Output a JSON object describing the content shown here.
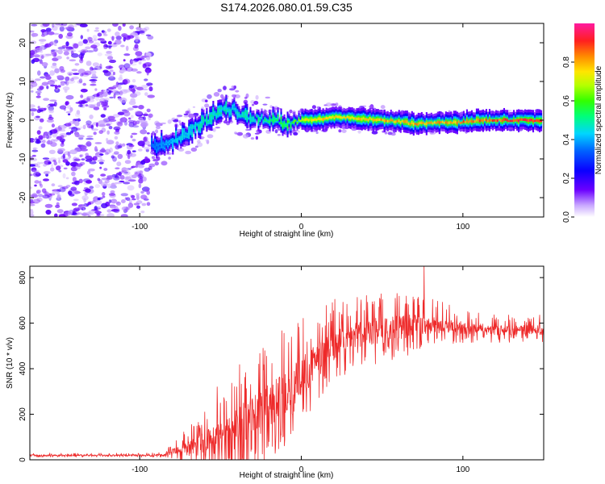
{
  "colors": {
    "snr_line": "#ee2a2a",
    "noise_purple": "#7a2cff",
    "frame": "#000000"
  },
  "chart_data": [
    {
      "type": "heatmap",
      "title": "S174.2026.080.01.59.C35",
      "xlabel": "Height of straight line (km)",
      "ylabel": "Frequency (Hz)",
      "xlim": [
        -168,
        150
      ],
      "ylim": [
        -25,
        25
      ],
      "xticks": [
        -100,
        0,
        100
      ],
      "xtick_labels": [
        "-100",
        "0",
        "100"
      ],
      "yticks": [
        -20,
        -10,
        0,
        10,
        20
      ],
      "ytick_labels": [
        "-20",
        "-10",
        "0",
        "10",
        "20"
      ],
      "colorbar": {
        "label": "Normalized spectral amplitude",
        "range": [
          0,
          1
        ],
        "ticks": [
          0.0,
          0.2,
          0.4,
          0.6,
          0.8
        ],
        "tick_labels": [
          "0.0",
          "0.2",
          "0.4",
          "0.6",
          "0.8"
        ],
        "colormap": "rainbow (purple-blue-cyan-green-yellow-red-magenta)"
      },
      "signal_track": {
        "x": [
          -93,
          -85,
          -78,
          -70,
          -62,
          -55,
          -48,
          -42,
          -38,
          -30,
          -22,
          -15,
          -10,
          -5,
          0,
          10,
          20,
          30,
          40,
          50,
          60,
          70,
          80,
          90,
          100,
          110,
          120,
          130,
          140,
          148
        ],
        "frequency": [
          -6.5,
          -6.0,
          -5.0,
          -3.0,
          -1.0,
          1.0,
          2.5,
          3.0,
          1.5,
          0.5,
          0.3,
          0.0,
          -1.5,
          -0.5,
          0.0,
          0.2,
          0.8,
          0.6,
          0.3,
          0.0,
          -0.3,
          -1.0,
          -0.8,
          -0.5,
          -0.5,
          0.0,
          0.0,
          0.0,
          0.0,
          0.0
        ],
        "amplitude": [
          0.35,
          0.4,
          0.45,
          0.45,
          0.5,
          0.5,
          0.5,
          0.45,
          0.5,
          0.5,
          0.55,
          0.55,
          0.6,
          0.65,
          0.75,
          0.8,
          0.8,
          0.8,
          0.8,
          0.85,
          0.85,
          0.85,
          0.85,
          0.85,
          0.9,
          0.9,
          0.92,
          0.95,
          0.97,
          0.97
        ]
      },
      "noise_region": {
        "x_from": -168,
        "x_to": -93,
        "amplitude_range": [
          0.0,
          0.15
        ]
      }
    },
    {
      "type": "line",
      "title": "",
      "xlabel": "Height of straight line (km)",
      "ylabel": "SNR (10 * v/v)",
      "xlim": [
        -168,
        150
      ],
      "ylim": [
        0,
        850
      ],
      "xticks": [
        -100,
        0,
        100
      ],
      "xtick_labels": [
        "-100",
        "0",
        "100"
      ],
      "yticks": [
        0,
        200,
        400,
        600,
        800
      ],
      "ytick_labels": [
        "0",
        "200",
        "400",
        "600",
        "800"
      ],
      "series": [
        {
          "name": "SNR",
          "x": [
            -168,
            -150,
            -130,
            -110,
            -95,
            -85,
            -80,
            -75,
            -70,
            -65,
            -60,
            -55,
            -50,
            -45,
            -40,
            -35,
            -30,
            -25,
            -20,
            -15,
            -10,
            -5,
            0,
            5,
            10,
            15,
            20,
            25,
            30,
            40,
            50,
            60,
            70,
            80,
            90,
            100,
            110,
            120,
            130,
            140,
            150
          ],
          "baseline": [
            20,
            20,
            20,
            20,
            20,
            22,
            35,
            40,
            50,
            60,
            70,
            80,
            90,
            110,
            140,
            160,
            180,
            200,
            240,
            270,
            300,
            330,
            360,
            400,
            440,
            470,
            500,
            520,
            540,
            560,
            570,
            580,
            590,
            590,
            590,
            580,
            575,
            570,
            570,
            570,
            570
          ],
          "spread": [
            8,
            8,
            8,
            8,
            8,
            10,
            30,
            60,
            80,
            110,
            130,
            160,
            170,
            190,
            220,
            240,
            260,
            270,
            250,
            240,
            240,
            230,
            220,
            200,
            200,
            180,
            170,
            160,
            150,
            150,
            150,
            140,
            120,
            100,
            80,
            70,
            60,
            55,
            55,
            55,
            55
          ],
          "peaks": [
            {
              "x": 76,
              "y": 850
            },
            {
              "x": -52,
              "y": 320
            },
            {
              "x": -40,
              "y": 320
            }
          ]
        }
      ]
    }
  ]
}
